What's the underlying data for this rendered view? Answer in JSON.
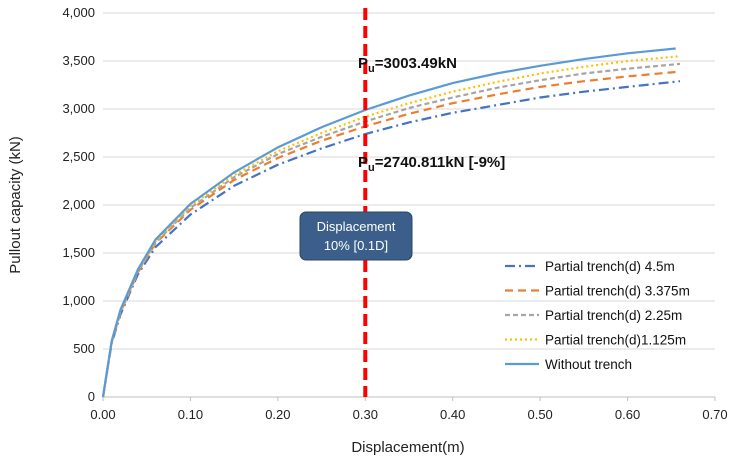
{
  "chart_data": {
    "type": "line",
    "xlabel": "Displacement(m)",
    "ylabel": "Pullout capacity (kN)",
    "xlim": [
      0,
      0.7
    ],
    "ylim": [
      0,
      4000
    ],
    "x_ticks": [
      "0.00",
      "0.10",
      "0.20",
      "0.30",
      "0.40",
      "0.50",
      "0.60",
      "0.70"
    ],
    "y_ticks": [
      "0",
      "500",
      "1,000",
      "1,500",
      "2,000",
      "2,500",
      "3,000",
      "3,500",
      "4,000"
    ],
    "grid": "horizontal",
    "legend_position": "bottom-right",
    "series": [
      {
        "name": "Partial trench(d) 4.5m",
        "color": "#4472c4",
        "style": "dash-dot",
        "x": [
          0,
          0.01,
          0.02,
          0.04,
          0.06,
          0.1,
          0.15,
          0.2,
          0.25,
          0.3,
          0.35,
          0.4,
          0.45,
          0.5,
          0.55,
          0.6,
          0.66
        ],
        "y": [
          0,
          560,
          860,
          1280,
          1560,
          1900,
          2200,
          2420,
          2590,
          2740,
          2860,
          2960,
          3040,
          3120,
          3180,
          3230,
          3290
        ]
      },
      {
        "name": "Partial trench(d) 3.375m",
        "color": "#ed7d31",
        "style": "dashed",
        "x": [
          0,
          0.01,
          0.02,
          0.04,
          0.06,
          0.1,
          0.15,
          0.2,
          0.25,
          0.3,
          0.35,
          0.4,
          0.45,
          0.5,
          0.55,
          0.6,
          0.66
        ],
        "y": [
          0,
          570,
          880,
          1300,
          1600,
          1950,
          2260,
          2490,
          2670,
          2820,
          2950,
          3060,
          3150,
          3230,
          3290,
          3340,
          3390
        ]
      },
      {
        "name": "Partial trench(d) 2.25m",
        "color": "#a5a5a5",
        "style": "dashed-fine",
        "x": [
          0,
          0.01,
          0.02,
          0.04,
          0.06,
          0.1,
          0.15,
          0.2,
          0.25,
          0.3,
          0.35,
          0.4,
          0.45,
          0.5,
          0.55,
          0.6,
          0.66
        ],
        "y": [
          0,
          575,
          890,
          1310,
          1610,
          1970,
          2290,
          2530,
          2710,
          2870,
          3010,
          3120,
          3220,
          3300,
          3370,
          3420,
          3470
        ]
      },
      {
        "name": "Partial trench(d)1.125m",
        "color": "#ffc000",
        "style": "dotted",
        "x": [
          0,
          0.01,
          0.02,
          0.04,
          0.06,
          0.1,
          0.15,
          0.2,
          0.25,
          0.3,
          0.35,
          0.4,
          0.45,
          0.5,
          0.55,
          0.6,
          0.66
        ],
        "y": [
          0,
          580,
          900,
          1320,
          1620,
          1990,
          2310,
          2560,
          2750,
          2920,
          3060,
          3180,
          3280,
          3370,
          3440,
          3500,
          3550
        ]
      },
      {
        "name": "Without trench",
        "color": "#5b9bd5",
        "style": "solid",
        "x": [
          0,
          0.01,
          0.02,
          0.04,
          0.06,
          0.1,
          0.15,
          0.2,
          0.25,
          0.3,
          0.35,
          0.4,
          0.45,
          0.5,
          0.55,
          0.6,
          0.655
        ],
        "y": [
          0,
          585,
          910,
          1330,
          1640,
          2010,
          2340,
          2600,
          2810,
          2990,
          3140,
          3270,
          3370,
          3450,
          3520,
          3580,
          3630
        ]
      }
    ],
    "vertical_line": {
      "x": 0.3,
      "color": "#ff0000"
    },
    "annotations": {
      "pu_top": {
        "main": "P",
        "sub": "u",
        "rest": "=3003.49kN"
      },
      "pu_bottom": {
        "main": "P",
        "sub": "u",
        "rest": "=2740.811kN [-9%]"
      },
      "box_line1": "Displacement",
      "box_line2": "10% [0.1D]",
      "box_color": "#3b5f8a"
    }
  }
}
